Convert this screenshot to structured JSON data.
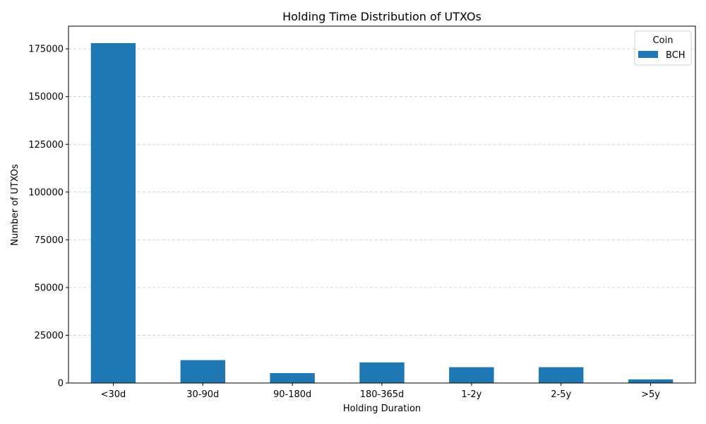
{
  "chart_data": {
    "type": "bar",
    "title": "Holding Time Distribution of UTXOs",
    "xlabel": "Holding Duration",
    "ylabel": "Number of UTXOs",
    "categories": [
      "<30d",
      "30-90d",
      "90-180d",
      "180-365d",
      "1-2y",
      "2-5y",
      ">5y"
    ],
    "series": [
      {
        "name": "BCH",
        "values": [
          178000,
          12000,
          5200,
          10800,
          8300,
          8300,
          1900
        ],
        "color": "#1f77b4"
      }
    ],
    "ylim": [
      0,
      186900
    ],
    "yticks": [
      0,
      25000,
      50000,
      75000,
      100000,
      125000,
      150000,
      175000
    ],
    "ytick_labels": [
      "0",
      "25000",
      "50000",
      "75000",
      "100000",
      "125000",
      "150000",
      "175000"
    ],
    "grid": "y-dashed",
    "legend": {
      "title": "Coin",
      "placement": "top-right"
    }
  }
}
